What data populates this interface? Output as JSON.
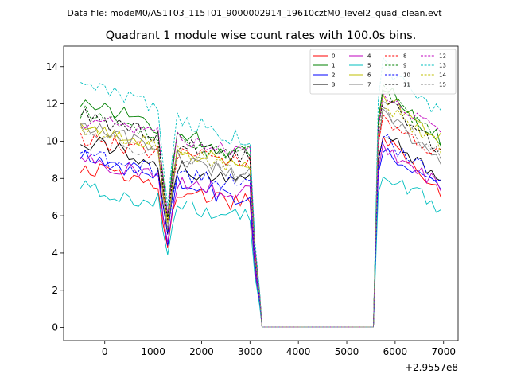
{
  "figure": {
    "suptitle": "Data file: modeM0/AS1T03_115T01_9000002914_19610cztM0_level2_quad_clean.evt"
  },
  "chart_data": {
    "type": "line",
    "title": "Quadrant 1 module wise count rates with 100.0s bins.",
    "xlabel": "",
    "ylabel": "",
    "x_offset_label": "+2.9557e8",
    "xlim": [
      -850,
      7300
    ],
    "ylim": [
      -0.7,
      15.1
    ],
    "xticks": [
      0,
      1000,
      2000,
      3000,
      4000,
      5000,
      6000,
      7000
    ],
    "xtick_labels": [
      "0",
      "1000",
      "2000",
      "3000",
      "4000",
      "5000",
      "6000",
      "7000"
    ],
    "yticks": [
      0,
      2,
      4,
      6,
      8,
      10,
      12,
      14
    ],
    "ytick_labels": [
      "0",
      "2",
      "4",
      "6",
      "8",
      "10",
      "12",
      "14"
    ],
    "legend_position": "upper-right",
    "x_segments": [
      {
        "start": -500,
        "end": 3000,
        "step": 100
      },
      {
        "start": 3100,
        "end": 3200,
        "step": 100
      },
      {
        "start": 3250,
        "end": 5550,
        "step": 100
      },
      {
        "start": 5650,
        "end": 6950,
        "step": 100
      }
    ],
    "series": [
      {
        "name": "0",
        "color": "#ff0000",
        "dash": "solid",
        "base": 8.6,
        "dip": 4.3,
        "peak": 10.5,
        "end": 7.0
      },
      {
        "name": "1",
        "color": "#008000",
        "dash": "solid",
        "base": 12.3,
        "dip": 6.0,
        "peak": 13.2,
        "end": 10.0
      },
      {
        "name": "2",
        "color": "#0000ff",
        "dash": "solid",
        "base": 9.3,
        "dip": 4.4,
        "peak": 9.7,
        "end": 7.5
      },
      {
        "name": "3",
        "color": "#000000",
        "dash": "solid",
        "base": 10.1,
        "dip": 5.0,
        "peak": 10.6,
        "end": 7.9
      },
      {
        "name": "4",
        "color": "#bf00bf",
        "dash": "solid",
        "base": 9.0,
        "dip": 4.6,
        "peak": 9.9,
        "end": 7.6
      },
      {
        "name": "5",
        "color": "#00bfbf",
        "dash": "solid",
        "base": 7.5,
        "dip": 3.9,
        "peak": 8.5,
        "end": 6.4
      },
      {
        "name": "6",
        "color": "#bfbf00",
        "dash": "solid",
        "base": 10.6,
        "dip": 5.7,
        "peak": 12.7,
        "end": 10.1
      },
      {
        "name": "7",
        "color": "#808080",
        "dash": "solid",
        "base": 11.0,
        "dip": 5.2,
        "peak": 11.6,
        "end": 9.0
      },
      {
        "name": "8",
        "color": "#ff0000",
        "dash": "dashed",
        "base": 10.1,
        "dip": 5.7,
        "peak": 11.5,
        "end": 9.2
      },
      {
        "name": "9",
        "color": "#008000",
        "dash": "dashed",
        "base": 11.6,
        "dip": 5.9,
        "peak": 12.9,
        "end": 9.9
      },
      {
        "name": "10",
        "color": "#0000ff",
        "dash": "dashed",
        "base": 9.2,
        "dip": 5.0,
        "peak": 10.3,
        "end": 8.0
      },
      {
        "name": "11",
        "color": "#000000",
        "dash": "dashed",
        "base": 11.4,
        "dip": 5.8,
        "peak": 12.7,
        "end": 9.4
      },
      {
        "name": "12",
        "color": "#bf00bf",
        "dash": "dashed",
        "base": 11.2,
        "dip": 6.1,
        "peak": 12.5,
        "end": 10.5
      },
      {
        "name": "13",
        "color": "#00bfbf",
        "dash": "dashed",
        "base": 13.3,
        "dip": 6.5,
        "peak": 14.3,
        "end": 11.5
      },
      {
        "name": "14",
        "color": "#bfbf00",
        "dash": "dashed",
        "base": 10.8,
        "dip": 5.6,
        "peak": 12.2,
        "end": 9.6
      },
      {
        "name": "15",
        "color": "#808080",
        "dash": "dashed",
        "base": 10.5,
        "dip": 5.4,
        "peak": 11.9,
        "end": 9.1
      }
    ]
  }
}
